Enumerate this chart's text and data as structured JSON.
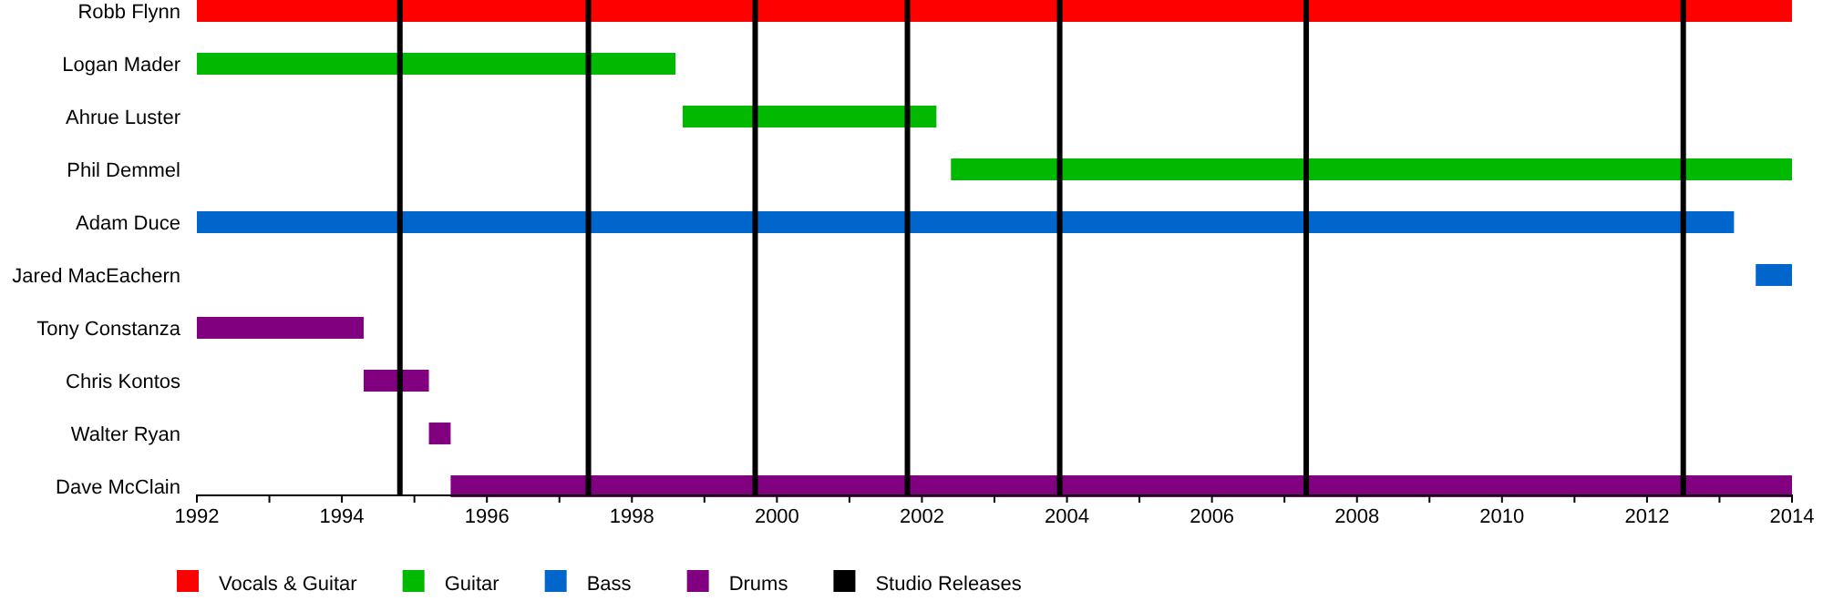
{
  "chart_data": {
    "type": "bar",
    "orientation": "horizontal",
    "categories": [
      "Robb Flynn",
      "Logan Mader",
      "Ahrue Luster",
      "Phil Demmel",
      "Adam Duce",
      "Jared MacEachern",
      "Tony Constanza",
      "Chris Kontos",
      "Walter Ryan",
      "Dave McClain"
    ],
    "series": [
      {
        "name": "Vocals & Guitar",
        "color": "#ff0000",
        "base": [
          1992,
          null,
          null,
          null,
          null,
          null,
          null,
          null,
          null,
          null
        ],
        "values": [
          22,
          null,
          null,
          null,
          null,
          null,
          null,
          null,
          null,
          null
        ]
      },
      {
        "name": "Guitar",
        "color": "#00b900",
        "base": [
          null,
          1992,
          1998.7,
          2002.4,
          null,
          null,
          null,
          null,
          null,
          null
        ],
        "values": [
          null,
          6.6,
          3.5,
          11.6,
          null,
          null,
          null,
          null,
          null,
          null
        ]
      },
      {
        "name": "Bass",
        "color": "#0066cc",
        "base": [
          null,
          null,
          null,
          null,
          1992,
          2013.5,
          null,
          null,
          null,
          null
        ],
        "values": [
          null,
          null,
          null,
          null,
          21.2,
          0.5,
          null,
          null,
          null,
          null
        ]
      },
      {
        "name": "Drums",
        "color": "#800080",
        "base": [
          null,
          null,
          null,
          null,
          null,
          null,
          1992,
          1994.3,
          1995.2,
          1995.5
        ],
        "values": [
          null,
          null,
          null,
          null,
          null,
          null,
          2.3,
          0.9,
          0.3,
          18.5
        ]
      }
    ],
    "ref_lines": [
      {
        "axis": "x",
        "value": 1994.8,
        "label": "Studio Releases",
        "color": "#000000"
      },
      {
        "axis": "x",
        "value": 1997.4,
        "label": null,
        "color": "#000000"
      },
      {
        "axis": "x",
        "value": 1999.7,
        "label": null,
        "color": "#000000"
      },
      {
        "axis": "x",
        "value": 2001.8,
        "label": null,
        "color": "#000000"
      },
      {
        "axis": "x",
        "value": 2003.9,
        "label": null,
        "color": "#000000"
      },
      {
        "axis": "x",
        "value": 2007.3,
        "label": null,
        "color": "#000000"
      },
      {
        "axis": "x",
        "value": 2012.5,
        "label": null,
        "color": "#000000"
      }
    ],
    "xlim": [
      1992,
      2014
    ],
    "xticks": [
      1992,
      {
        "value": 1993,
        "label": null
      },
      1994,
      {
        "value": 1995,
        "label": null
      },
      1996,
      {
        "value": 1997,
        "label": null
      },
      1998,
      {
        "value": 1999,
        "label": null
      },
      2000,
      {
        "value": 2001,
        "label": null
      },
      2002,
      {
        "value": 2003,
        "label": null
      },
      2004,
      {
        "value": 2005,
        "label": null
      },
      2006,
      {
        "value": 2007,
        "label": null
      },
      2008,
      {
        "value": 2009,
        "label": null
      },
      2010,
      {
        "value": 2011,
        "label": null
      },
      2012,
      {
        "value": 2013,
        "label": null
      },
      2014
    ],
    "grid": false,
    "legend": "bottom left"
  }
}
